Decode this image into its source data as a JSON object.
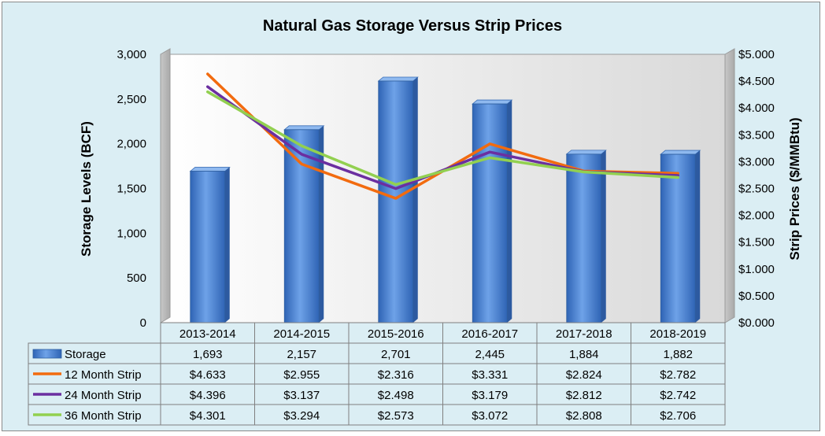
{
  "chart_data": {
    "type": "bar",
    "title": "Natural Gas Storage Versus Strip Prices",
    "categories": [
      "2013-2014",
      "2014-2015",
      "2015-2016",
      "2016-2017",
      "2017-2018",
      "2018-2019"
    ],
    "ylabel_left": "Storage Levels (BCF)",
    "ylabel_right": "Strip Prices ($/MMBtu)",
    "ylim_left": [
      0,
      3000
    ],
    "ylim_right": [
      0,
      5
    ],
    "left_ticks": [
      "0",
      "500",
      "1,000",
      "1,500",
      "2,000",
      "2,500",
      "3,000"
    ],
    "right_ticks": [
      "$0.000",
      "$0.500",
      "$1.000",
      "$1.500",
      "$2.000",
      "$2.500",
      "$3.000",
      "$3.500",
      "$4.000",
      "$4.500",
      "$5.000"
    ],
    "grid": false,
    "legend_placement": "data-table",
    "series": [
      {
        "name": "Storage",
        "type": "bar",
        "axis": "left",
        "color": "#4f8fdc",
        "values": [
          1693,
          2157,
          2701,
          2445,
          1884,
          1882
        ],
        "labels": [
          "1,693",
          "2,157",
          "2,701",
          "2,445",
          "1,884",
          "1,882"
        ]
      },
      {
        "name": "12 Month Strip",
        "type": "line",
        "axis": "right",
        "color": "#f26b0f",
        "values": [
          4.633,
          2.955,
          2.316,
          3.331,
          2.824,
          2.782
        ],
        "labels": [
          "$4.633",
          "$2.955",
          "$2.316",
          "$3.331",
          "$2.824",
          "$2.782"
        ]
      },
      {
        "name": "24 Month Strip",
        "type": "line",
        "axis": "right",
        "color": "#6b2fa0",
        "values": [
          4.396,
          3.137,
          2.498,
          3.179,
          2.812,
          2.742
        ],
        "labels": [
          "$4.396",
          "$3.137",
          "$2.498",
          "$3.179",
          "$2.812",
          "$2.742"
        ]
      },
      {
        "name": "36 Month Strip",
        "type": "line",
        "axis": "right",
        "color": "#92d050",
        "values": [
          4.301,
          3.294,
          2.573,
          3.072,
          2.808,
          2.706
        ],
        "labels": [
          "$4.301",
          "$3.294",
          "$2.573",
          "$3.072",
          "$2.808",
          "$2.706"
        ]
      }
    ]
  }
}
